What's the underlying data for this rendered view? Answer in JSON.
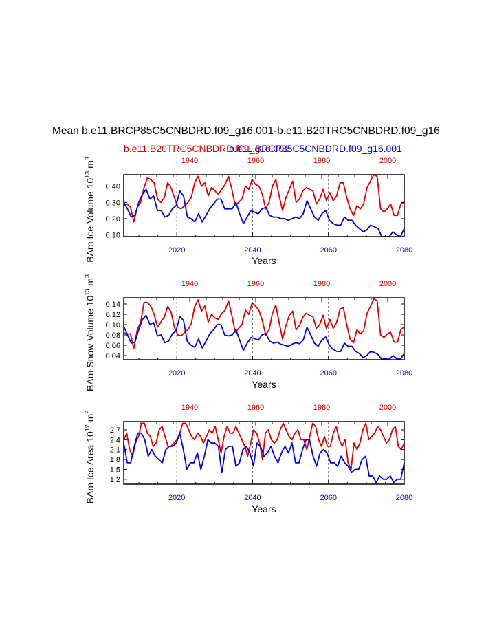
{
  "title": "Mean b.e11.BRCP85C5CNBDRD.f09_g16.001-b.e11.B20TRC5CNBDRD.f09_g16",
  "legend": {
    "red": "b.e11.B20TRC5CNBDRD.f09_g16.001",
    "blue": "b.e11.BRCP85C5CNBDRD.f09_g16.001"
  },
  "colors": {
    "red": "#dd0000",
    "blue": "#0000dd",
    "axis": "#000000",
    "grid": "#666666"
  },
  "chart_data": [
    {
      "type": "line",
      "name": "ice-volume",
      "ylabel": "BAm Ice Volume 10",
      "ylabel_exp": "13",
      "ylabel_unit": "m",
      "ylabel_unit_exp": "3",
      "xlabel": "Years",
      "ylim": [
        0.09,
        0.47
      ],
      "yticks": [
        "0.10",
        "0.20",
        "0.30",
        "0.40"
      ],
      "x_bottom": {
        "range": [
          2006,
          2080
        ],
        "ticks": [
          "2020",
          "2040",
          "2060",
          "2080"
        ]
      },
      "x_top": {
        "range": [
          1920,
          2005
        ],
        "ticks": [
          "1940",
          "1960",
          "1980",
          "2000"
        ]
      },
      "dashed_x": [
        2020,
        2040,
        2060
      ],
      "series": [
        {
          "name": "b.e11.B20TRC5CNBDRD.f09_g16.001",
          "color": "red",
          "values": [
            0.28,
            0.29,
            0.27,
            0.18,
            0.27,
            0.3,
            0.39,
            0.45,
            0.44,
            0.42,
            0.32,
            0.3,
            0.33,
            0.42,
            0.39,
            0.33,
            0.27,
            0.26,
            0.28,
            0.3,
            0.33,
            0.42,
            0.46,
            0.4,
            0.42,
            0.34,
            0.39,
            0.37,
            0.35,
            0.38,
            0.41,
            0.46,
            0.38,
            0.28,
            0.3,
            0.32,
            0.4,
            0.38,
            0.44,
            0.41,
            0.4,
            0.35,
            0.26,
            0.3,
            0.4,
            0.44,
            0.34,
            0.25,
            0.33,
            0.38,
            0.43,
            0.3,
            0.32,
            0.37,
            0.39,
            0.38,
            0.37,
            0.29,
            0.32,
            0.38,
            0.31,
            0.36,
            0.31,
            0.34,
            0.42,
            0.42,
            0.33,
            0.26,
            0.22,
            0.28,
            0.26,
            0.29,
            0.39,
            0.43,
            0.47,
            0.46,
            0.26,
            0.24,
            0.26,
            0.29,
            0.22,
            0.22,
            0.29,
            0.3
          ]
        },
        {
          "name": "b.e11.BRCP85C5CNBDRD.f09_g16.001",
          "color": "blue",
          "values": [
            0.3,
            0.26,
            0.21,
            0.22,
            0.3,
            0.35,
            0.38,
            0.32,
            0.34,
            0.25,
            0.25,
            0.21,
            0.22,
            0.26,
            0.28,
            0.37,
            0.34,
            0.21,
            0.2,
            0.18,
            0.23,
            0.18,
            0.22,
            0.26,
            0.29,
            0.32,
            0.32,
            0.26,
            0.26,
            0.26,
            0.3,
            0.23,
            0.17,
            0.21,
            0.25,
            0.24,
            0.23,
            0.26,
            0.27,
            0.22,
            0.21,
            0.21,
            0.2,
            0.2,
            0.19,
            0.2,
            0.21,
            0.2,
            0.23,
            0.31,
            0.26,
            0.21,
            0.19,
            0.23,
            0.25,
            0.19,
            0.17,
            0.16,
            0.16,
            0.21,
            0.19,
            0.19,
            0.16,
            0.14,
            0.12,
            0.13,
            0.16,
            0.15,
            0.14,
            0.09,
            0.09,
            0.09,
            0.12,
            0.1,
            0.09,
            0.14
          ]
        }
      ]
    },
    {
      "type": "line",
      "name": "snow-volume",
      "ylabel": "BAm Snow Volume 10",
      "ylabel_exp": "13",
      "ylabel_unit": "m",
      "ylabel_unit_exp": "3",
      "xlabel": "Years",
      "ylim": [
        0.032,
        0.152
      ],
      "yticks": [
        "0.04",
        "0.06",
        "0.08",
        "0.10",
        "0.12",
        "0.14"
      ],
      "x_bottom": {
        "range": [
          2006,
          2080
        ],
        "ticks": [
          "2020",
          "2040",
          "2060",
          "2080"
        ]
      },
      "x_top": {
        "range": [
          1920,
          2005
        ],
        "ticks": [
          "1940",
          "1960",
          "1980",
          "2000"
        ]
      },
      "dashed_x": [
        2020,
        2040,
        2060
      ],
      "series": [
        {
          "name": "b.e11.B20TRC5CNBDRD.f09_g16.001",
          "color": "red",
          "values": [
            0.084,
            0.082,
            0.082,
            0.054,
            0.09,
            0.105,
            0.143,
            0.143,
            0.136,
            0.12,
            0.095,
            0.105,
            0.115,
            0.135,
            0.125,
            0.095,
            0.08,
            0.078,
            0.085,
            0.09,
            0.102,
            0.135,
            0.148,
            0.126,
            0.136,
            0.105,
            0.12,
            0.113,
            0.11,
            0.122,
            0.128,
            0.146,
            0.118,
            0.085,
            0.093,
            0.1,
            0.128,
            0.12,
            0.142,
            0.136,
            0.128,
            0.108,
            0.08,
            0.09,
            0.122,
            0.138,
            0.104,
            0.072,
            0.098,
            0.118,
            0.126,
            0.09,
            0.098,
            0.114,
            0.122,
            0.118,
            0.115,
            0.093,
            0.1,
            0.118,
            0.092,
            0.11,
            0.093,
            0.104,
            0.13,
            0.133,
            0.1,
            0.072,
            0.065,
            0.09,
            0.082,
            0.088,
            0.122,
            0.135,
            0.15,
            0.146,
            0.08,
            0.075,
            0.082,
            0.085,
            0.066,
            0.066,
            0.09,
            0.096
          ]
        },
        {
          "name": "b.e11.BRCP85C5CNBDRD.f09_g16.001",
          "color": "blue",
          "values": [
            0.097,
            0.08,
            0.064,
            0.066,
            0.09,
            0.11,
            0.118,
            0.1,
            0.104,
            0.078,
            0.08,
            0.065,
            0.068,
            0.082,
            0.088,
            0.116,
            0.108,
            0.067,
            0.06,
            0.056,
            0.072,
            0.055,
            0.068,
            0.082,
            0.09,
            0.1,
            0.1,
            0.08,
            0.078,
            0.08,
            0.09,
            0.07,
            0.05,
            0.064,
            0.075,
            0.073,
            0.07,
            0.08,
            0.083,
            0.068,
            0.064,
            0.066,
            0.062,
            0.06,
            0.058,
            0.062,
            0.065,
            0.063,
            0.07,
            0.095,
            0.08,
            0.064,
            0.058,
            0.07,
            0.076,
            0.06,
            0.052,
            0.048,
            0.048,
            0.064,
            0.058,
            0.058,
            0.048,
            0.044,
            0.036,
            0.04,
            0.048,
            0.046,
            0.042,
            0.033,
            0.034,
            0.033,
            0.04,
            0.034,
            0.033,
            0.044
          ]
        }
      ]
    },
    {
      "type": "line",
      "name": "ice-area",
      "ylabel": "BAm Ice Area 10",
      "ylabel_exp": "12",
      "ylabel_unit": "m",
      "ylabel_unit_exp": "2",
      "xlabel": "Years",
      "ylim": [
        1.05,
        2.95
      ],
      "yticks": [
        "1.2",
        "1.5",
        "1.8",
        "2.1",
        "2.4",
        "2.7"
      ],
      "x_bottom": {
        "range": [
          2006,
          2080
        ],
        "ticks": [
          "2020",
          "2040",
          "2060",
          "2080"
        ]
      },
      "x_top": {
        "range": [
          1920,
          2005
        ],
        "ticks": [
          "1940",
          "1960",
          "1980",
          "2000"
        ]
      },
      "dashed_x": [
        2020,
        2040,
        2060
      ],
      "series": [
        {
          "name": "b.e11.B20TRC5CNBDRD.f09_g16.001",
          "color": "red",
          "values": [
            2.4,
            2.6,
            2.1,
            1.9,
            2.3,
            2.5,
            2.9,
            2.9,
            2.6,
            2.5,
            2.2,
            2.3,
            2.7,
            2.8,
            2.5,
            2.2,
            2.2,
            2.3,
            2.4,
            2.6,
            2.9,
            2.9,
            2.7,
            2.5,
            2.4,
            2.6,
            2.5,
            2.3,
            2.5,
            2.7,
            2.6,
            2.8,
            2.4,
            2.0,
            2.5,
            2.8,
            2.6,
            2.6,
            2.8,
            2.6,
            2.4,
            2.2,
            1.9,
            2.3,
            2.7,
            2.6,
            2.3,
            1.8,
            2.6,
            2.7,
            2.4,
            2.3,
            2.4,
            2.7,
            2.9,
            2.7,
            2.5,
            2.4,
            2.6,
            2.7,
            2.4,
            2.4,
            2.1,
            2.5,
            2.9,
            2.8,
            2.4,
            2.2,
            2.5,
            2.2,
            2.2,
            2.6,
            2.8,
            2.4,
            2.2,
            2.4,
            1.7,
            1.5,
            2.3,
            2.1,
            2.3,
            2.7,
            2.9,
            2.4,
            2.5,
            2.6,
            2.8,
            2.7,
            2.5,
            2.3,
            2.4,
            2.7,
            2.8,
            2.2,
            2.1,
            2.3
          ]
        },
        {
          "name": "b.e11.BRCP85C5CNBDRD.f09_g16.001",
          "color": "blue",
          "values": [
            2.3,
            1.7,
            1.7,
            2.2,
            2.6,
            2.6,
            2.4,
            1.9,
            2.1,
            1.9,
            1.8,
            1.7,
            2.1,
            2.2,
            2.2,
            2.3,
            2.6,
            2.1,
            1.5,
            1.7,
            1.7,
            2.0,
            1.5,
            1.9,
            2.4,
            2.3,
            2.3,
            2.2,
            1.4,
            2.1,
            2.2,
            2.2,
            1.6,
            1.7,
            2.1,
            2.2,
            2.0,
            1.6,
            2.3,
            2.2,
            1.9,
            2.0,
            2.2,
            1.9,
            1.7,
            2.0,
            2.2,
            2.0,
            2.3,
            1.7,
            1.7,
            2.1,
            2.4,
            2.4,
            1.9,
            1.6,
            2.0,
            2.1,
            2.0,
            1.7,
            1.7,
            1.6,
            1.9,
            1.7,
            1.6,
            1.4,
            1.5,
            1.5,
            1.8,
            1.9,
            1.3,
            1.3,
            1.1,
            1.3,
            1.2,
            1.2,
            1.3,
            1.1,
            1.2,
            1.2,
            1.7
          ]
        }
      ]
    }
  ]
}
